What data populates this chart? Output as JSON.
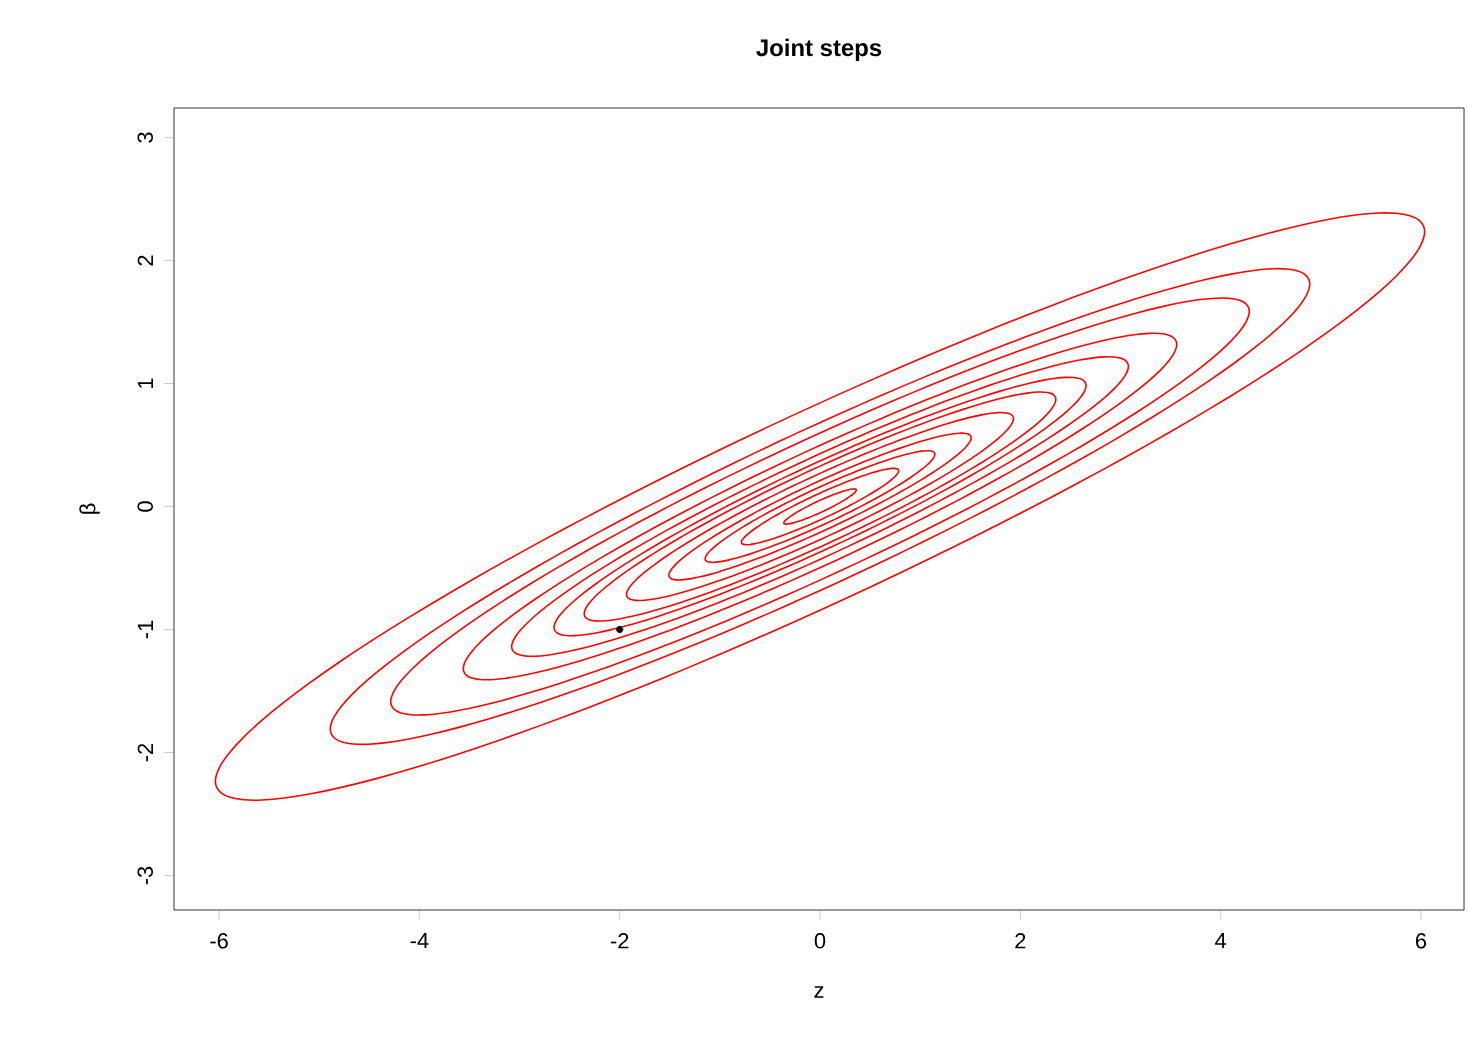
{
  "chart_data": {
    "type": "scatter",
    "title": "Joint steps",
    "xlabel": "z",
    "ylabel": "β",
    "xlim": [
      -6.45,
      6.43
    ],
    "ylim": [
      -3.28,
      3.24
    ],
    "xticks": [
      -6,
      -4,
      -2,
      0,
      2,
      4,
      6
    ],
    "yticks": [
      -3,
      -2,
      -1,
      0,
      1,
      2,
      3
    ],
    "grid": false,
    "marker": "circle",
    "color": "#000000",
    "x": [
      -2
    ],
    "values": [
      -1
    ]
  }
}
